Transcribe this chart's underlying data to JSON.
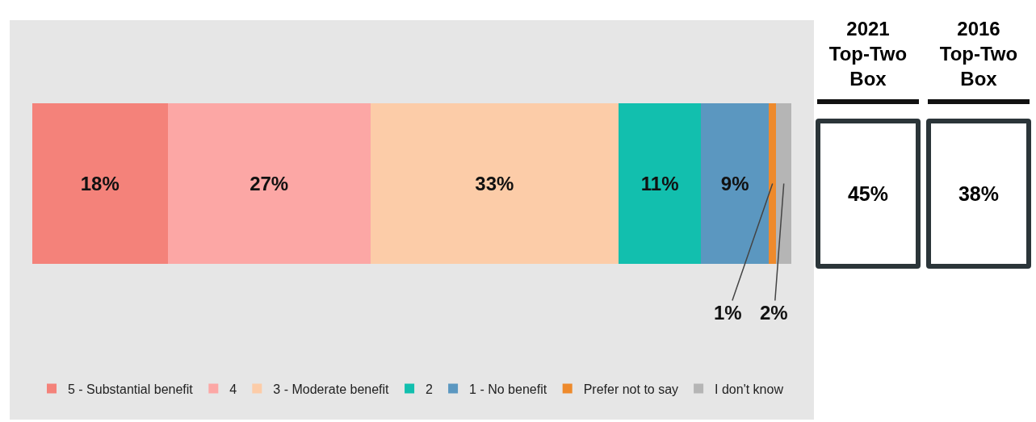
{
  "chart_data": {
    "type": "bar",
    "orientation": "horizontal",
    "stacked": true,
    "categories": [
      null
    ],
    "series": [
      {
        "name": "5 - Substantial benefit",
        "color": "#f4827a",
        "values": [
          18
        ],
        "value_labels": [
          "18%"
        ]
      },
      {
        "name": "4",
        "color": "#fca7a5",
        "values": [
          27
        ],
        "value_labels": [
          "27%"
        ]
      },
      {
        "name": "3 - Moderate benefit",
        "color": "#fccca8",
        "values": [
          33
        ],
        "value_labels": [
          "33%"
        ]
      },
      {
        "name": "2",
        "color": "#12bfae",
        "values": [
          11
        ],
        "value_labels": [
          "11%"
        ]
      },
      {
        "name": "1 - No benefit",
        "color": "#5b97c0",
        "values": [
          9
        ],
        "value_labels": [
          "9%"
        ]
      },
      {
        "name": "Prefer not to say",
        "color": "#ee8a2c",
        "values": [
          1
        ],
        "value_labels": [
          "1%"
        ]
      },
      {
        "name": "I don't know",
        "color": "#b5b5b5",
        "values": [
          2
        ],
        "value_labels": [
          "2%"
        ]
      }
    ],
    "tick_labels": false,
    "grid": false,
    "legend": "bottom",
    "annotations": [
      "2021 Top-Two Box",
      "45%",
      "2016 Top-Two Box",
      "38%"
    ]
  }
}
